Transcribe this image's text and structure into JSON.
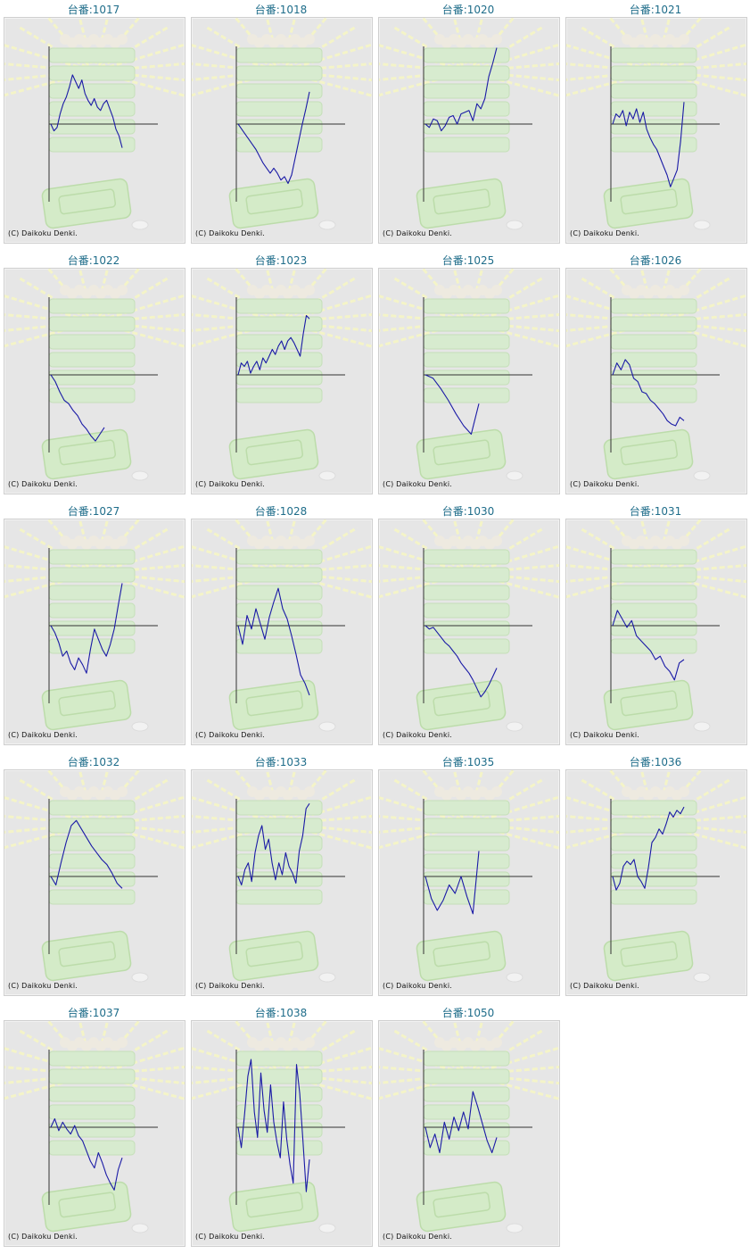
{
  "copyright": "(C) Daikoku Denki.",
  "colors": {
    "title": "#1f6d8a",
    "line": "#1a1aa6",
    "axis": "#333333",
    "panel": "#e6e6e6"
  },
  "machines": [
    {
      "label": "台番:1017",
      "points": [
        0,
        -8,
        -4,
        12,
        24,
        32,
        44,
        58,
        50,
        42,
        52,
        36,
        28,
        22,
        30,
        20,
        16,
        24,
        28,
        18,
        8,
        -6,
        -14,
        -28
      ]
    },
    {
      "label": "台番:1018",
      "points": [
        0,
        -6,
        -12,
        -18,
        -24,
        -30,
        -38,
        -46,
        -52,
        -58,
        -52,
        -58,
        -66,
        -62,
        -70,
        -60,
        -40,
        -20,
        0,
        18,
        38
      ]
    },
    {
      "label": "台番:1020",
      "points": [
        0,
        -4,
        6,
        4,
        -8,
        -2,
        8,
        10,
        0,
        12,
        14,
        16,
        4,
        24,
        18,
        30,
        56,
        72,
        90
      ]
    },
    {
      "label": "台番:1021",
      "points": [
        0,
        12,
        8,
        16,
        -2,
        14,
        6,
        18,
        2,
        14,
        -6,
        -16,
        -24,
        -30,
        -40,
        -50,
        -60,
        -74,
        -64,
        -54,
        -20,
        26
      ]
    },
    {
      "label": "台番:1022",
      "points": [
        0,
        -8,
        -20,
        -30,
        -34,
        -42,
        -48,
        -58,
        -64,
        -72,
        -78,
        -70,
        -62
      ]
    },
    {
      "label": "台番:1023",
      "points": [
        0,
        14,
        10,
        16,
        2,
        10,
        16,
        6,
        20,
        14,
        22,
        30,
        24,
        34,
        40,
        30,
        40,
        44,
        38,
        30,
        22,
        48,
        70,
        66
      ]
    },
    {
      "label": "台番:1025",
      "points": [
        0,
        -4,
        -16,
        -30,
        -46,
        -60,
        -70,
        -34
      ]
    },
    {
      "label": "台番:1026",
      "points": [
        0,
        14,
        6,
        18,
        12,
        -4,
        -8,
        -20,
        -22,
        -30,
        -34,
        -40,
        -46,
        -54,
        -58,
        -60,
        -50,
        -54
      ]
    },
    {
      "label": "台番:1027",
      "points": [
        0,
        -8,
        -20,
        -36,
        -30,
        -44,
        -52,
        -38,
        -46,
        -56,
        -28,
        -4,
        -16,
        -28,
        -36,
        -22,
        -4,
        24,
        50
      ]
    },
    {
      "label": "台番:1028",
      "points": [
        0,
        -22,
        12,
        -4,
        20,
        2,
        -16,
        10,
        28,
        44,
        20,
        8,
        -12,
        -34,
        -58,
        -68,
        -82
      ]
    },
    {
      "label": "台番:1030",
      "points": [
        0,
        -4,
        -2,
        -8,
        -14,
        -20,
        -24,
        -30,
        -36,
        -44,
        -50,
        -56,
        -64,
        -74,
        -84,
        -78,
        -70,
        -60,
        -50
      ]
    },
    {
      "label": "台番:1031",
      "points": [
        0,
        18,
        8,
        -2,
        6,
        -12,
        -18,
        -24,
        -30,
        -40,
        -36,
        -48,
        -54,
        -64,
        -44,
        -40
      ]
    },
    {
      "label": "台番:1032",
      "points": [
        0,
        -10,
        16,
        40,
        60,
        66,
        56,
        46,
        36,
        28,
        20,
        14,
        4,
        -8,
        -14
      ]
    },
    {
      "label": "台番:1033",
      "points": [
        0,
        -10,
        8,
        16,
        -6,
        28,
        48,
        60,
        32,
        44,
        16,
        -4,
        16,
        2,
        28,
        12,
        4,
        -8,
        30,
        48,
        80,
        86
      ]
    },
    {
      "label": "台番:1035",
      "points": [
        0,
        -26,
        -40,
        -28,
        -10,
        -20,
        0,
        -24,
        -44,
        30
      ]
    },
    {
      "label": "台番:1036",
      "points": [
        0,
        -16,
        -8,
        12,
        18,
        14,
        20,
        0,
        -6,
        -14,
        10,
        40,
        46,
        56,
        50,
        62,
        76,
        70,
        78,
        74,
        82
      ]
    },
    {
      "label": "台番:1037",
      "points": [
        0,
        10,
        -4,
        6,
        -2,
        -8,
        2,
        -10,
        -16,
        -28,
        -40,
        -48,
        -30,
        -42,
        -56,
        -66,
        -74,
        -50,
        -36
      ]
    },
    {
      "label": "台番:1038",
      "points": [
        0,
        -24,
        16,
        60,
        80,
        18,
        -12,
        64,
        20,
        -6,
        50,
        6,
        -18,
        -36,
        30,
        -14,
        -44,
        -66,
        74,
        40,
        -16,
        -76,
        -38
      ]
    },
    {
      "label": "台番:1050",
      "points": [
        0,
        -24,
        -8,
        -30,
        6,
        -14,
        12,
        -4,
        18,
        -2,
        42,
        24,
        4,
        -16,
        -30,
        -12
      ]
    }
  ]
}
